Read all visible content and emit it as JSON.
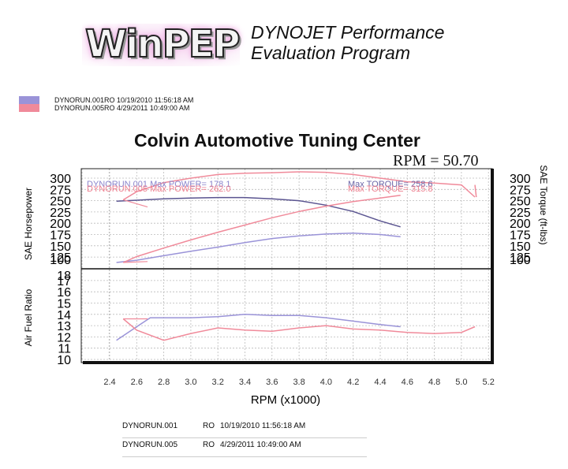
{
  "header": {
    "logo_text": "WinPEP",
    "tagline_line1": "DYNOJET Performance",
    "tagline_line2": "Evaluation Program"
  },
  "legend": {
    "items": [
      {
        "label": "DYNORUN.001RO  10/19/2010 11:56:18 AM",
        "color": "#9a93d8"
      },
      {
        "label": "DYNORUN.005RO  4/29/2011 10:49:00 AM",
        "color": "#f08a9a"
      }
    ]
  },
  "title": "Colvin Automotive Tuning Center",
  "rpm_readout": "RPM = 50.70",
  "annotations": {
    "run001_power": "DYNORUN.001  Max POWER= 178.1",
    "run005_power": "DYNORUN.005  Max POWER= 262.0",
    "run001_torque": "Max TORQUE= 258.6",
    "run005_torque": "Max TORQUE= 315.8"
  },
  "axes": {
    "left_upper_label": "SAE Horsepower",
    "right_upper_label": "SAE Torque (ft-lbs)",
    "left_lower_label": "Air Fuel Ratio",
    "x_label": "RPM (x1000)",
    "upper_ticks": [
      "300",
      "275",
      "250",
      "225",
      "200",
      "175",
      "150",
      "125",
      "100"
    ],
    "afr_ticks": [
      "18",
      "17",
      "16",
      "15",
      "14",
      "13",
      "12",
      "11",
      "10"
    ],
    "x_ticks": [
      "2.4",
      "2.6",
      "2.8",
      "3.0",
      "3.2",
      "3.4",
      "3.6",
      "3.8",
      "4.0",
      "4.2",
      "4.4",
      "4.6",
      "4.8",
      "5.0",
      "5.2"
    ]
  },
  "bottom_table": {
    "rows": [
      {
        "run": "DYNORUN.001",
        "code": "RO",
        "datetime": "10/19/2010 11:56:18 AM"
      },
      {
        "run": "DYNORUN.005",
        "code": "RO",
        "datetime": "4/29/2011 10:49:00 AM"
      }
    ]
  },
  "chart_data": [
    {
      "type": "line",
      "title": "Colvin Automotive Tuning Center",
      "xlabel": "RPM (x1000)",
      "ylabel": "SAE Horsepower / SAE Torque (ft-lbs)",
      "xlim": [
        2.2,
        5.2
      ],
      "ylim": [
        100,
        300
      ],
      "grid": true,
      "x": [
        2.45,
        2.6,
        2.8,
        3.0,
        3.2,
        3.4,
        3.6,
        3.8,
        4.0,
        4.2,
        4.4,
        4.55,
        4.8,
        5.0,
        5.1
      ],
      "series": [
        {
          "name": "DYNORUN.001 Torque",
          "color": "#5a5490",
          "x": [
            2.45,
            2.6,
            2.8,
            3.0,
            3.2,
            3.4,
            3.6,
            3.8,
            4.0,
            4.2,
            4.4,
            4.55
          ],
          "values": [
            249,
            251,
            254,
            256,
            257,
            257,
            254,
            250,
            240,
            226,
            205,
            192
          ]
        },
        {
          "name": "DYNORUN.001 Power",
          "color": "#9a93d8",
          "x": [
            2.45,
            2.6,
            2.8,
            3.0,
            3.2,
            3.4,
            3.6,
            3.8,
            4.0,
            4.2,
            4.4,
            4.55
          ],
          "values": [
            113,
            118,
            128,
            138,
            147,
            157,
            166,
            172,
            176,
            178,
            175,
            170
          ]
        },
        {
          "name": "DYNORUN.005 Torque",
          "color": "#f08a9a",
          "x": [
            2.5,
            2.6,
            2.8,
            3.0,
            3.2,
            3.4,
            3.6,
            3.8,
            4.0,
            4.2,
            4.4,
            4.6,
            4.8,
            5.0,
            5.1
          ],
          "values": [
            252,
            270,
            290,
            300,
            308,
            311,
            312,
            314,
            313,
            308,
            300,
            292,
            289,
            285,
            258
          ]
        },
        {
          "name": "DYNORUN.005 Power",
          "color": "#f08a9a",
          "x": [
            2.5,
            2.6,
            2.8,
            3.0,
            3.2,
            3.4,
            3.6,
            3.8,
            4.0,
            4.2,
            4.4,
            4.55
          ],
          "values": [
            113,
            126,
            145,
            163,
            180,
            196,
            212,
            226,
            238,
            248,
            256,
            262
          ]
        }
      ],
      "annotations": [
        "DYNORUN.001 Max POWER= 178.1",
        "DYNORUN.005 Max POWER= 262.0",
        "Max TORQUE= 258.6",
        "Max TORQUE= 315.8"
      ]
    },
    {
      "type": "line",
      "ylabel": "Air Fuel Ratio",
      "xlabel": "RPM (x1000)",
      "xlim": [
        2.2,
        5.2
      ],
      "ylim": [
        10,
        18
      ],
      "grid": true,
      "series": [
        {
          "name": "DYNORUN.001 AFR",
          "color": "#9a93d8",
          "x": [
            2.45,
            2.6,
            2.7,
            3.0,
            3.2,
            3.4,
            3.6,
            3.8,
            4.0,
            4.2,
            4.4,
            4.55
          ],
          "values": [
            11.7,
            12.9,
            13.7,
            13.7,
            13.8,
            14.0,
            13.9,
            13.9,
            13.7,
            13.4,
            13.1,
            12.9
          ]
        },
        {
          "name": "DYNORUN.005 AFR",
          "color": "#f08a9a",
          "x": [
            2.5,
            2.6,
            2.8,
            3.0,
            3.2,
            3.4,
            3.6,
            3.8,
            4.0,
            4.2,
            4.4,
            4.6,
            4.8,
            5.0,
            5.1
          ],
          "values": [
            13.6,
            12.6,
            11.7,
            12.3,
            12.8,
            12.6,
            12.5,
            12.8,
            13.0,
            12.7,
            12.6,
            12.4,
            12.3,
            12.4,
            12.9
          ]
        }
      ]
    }
  ]
}
